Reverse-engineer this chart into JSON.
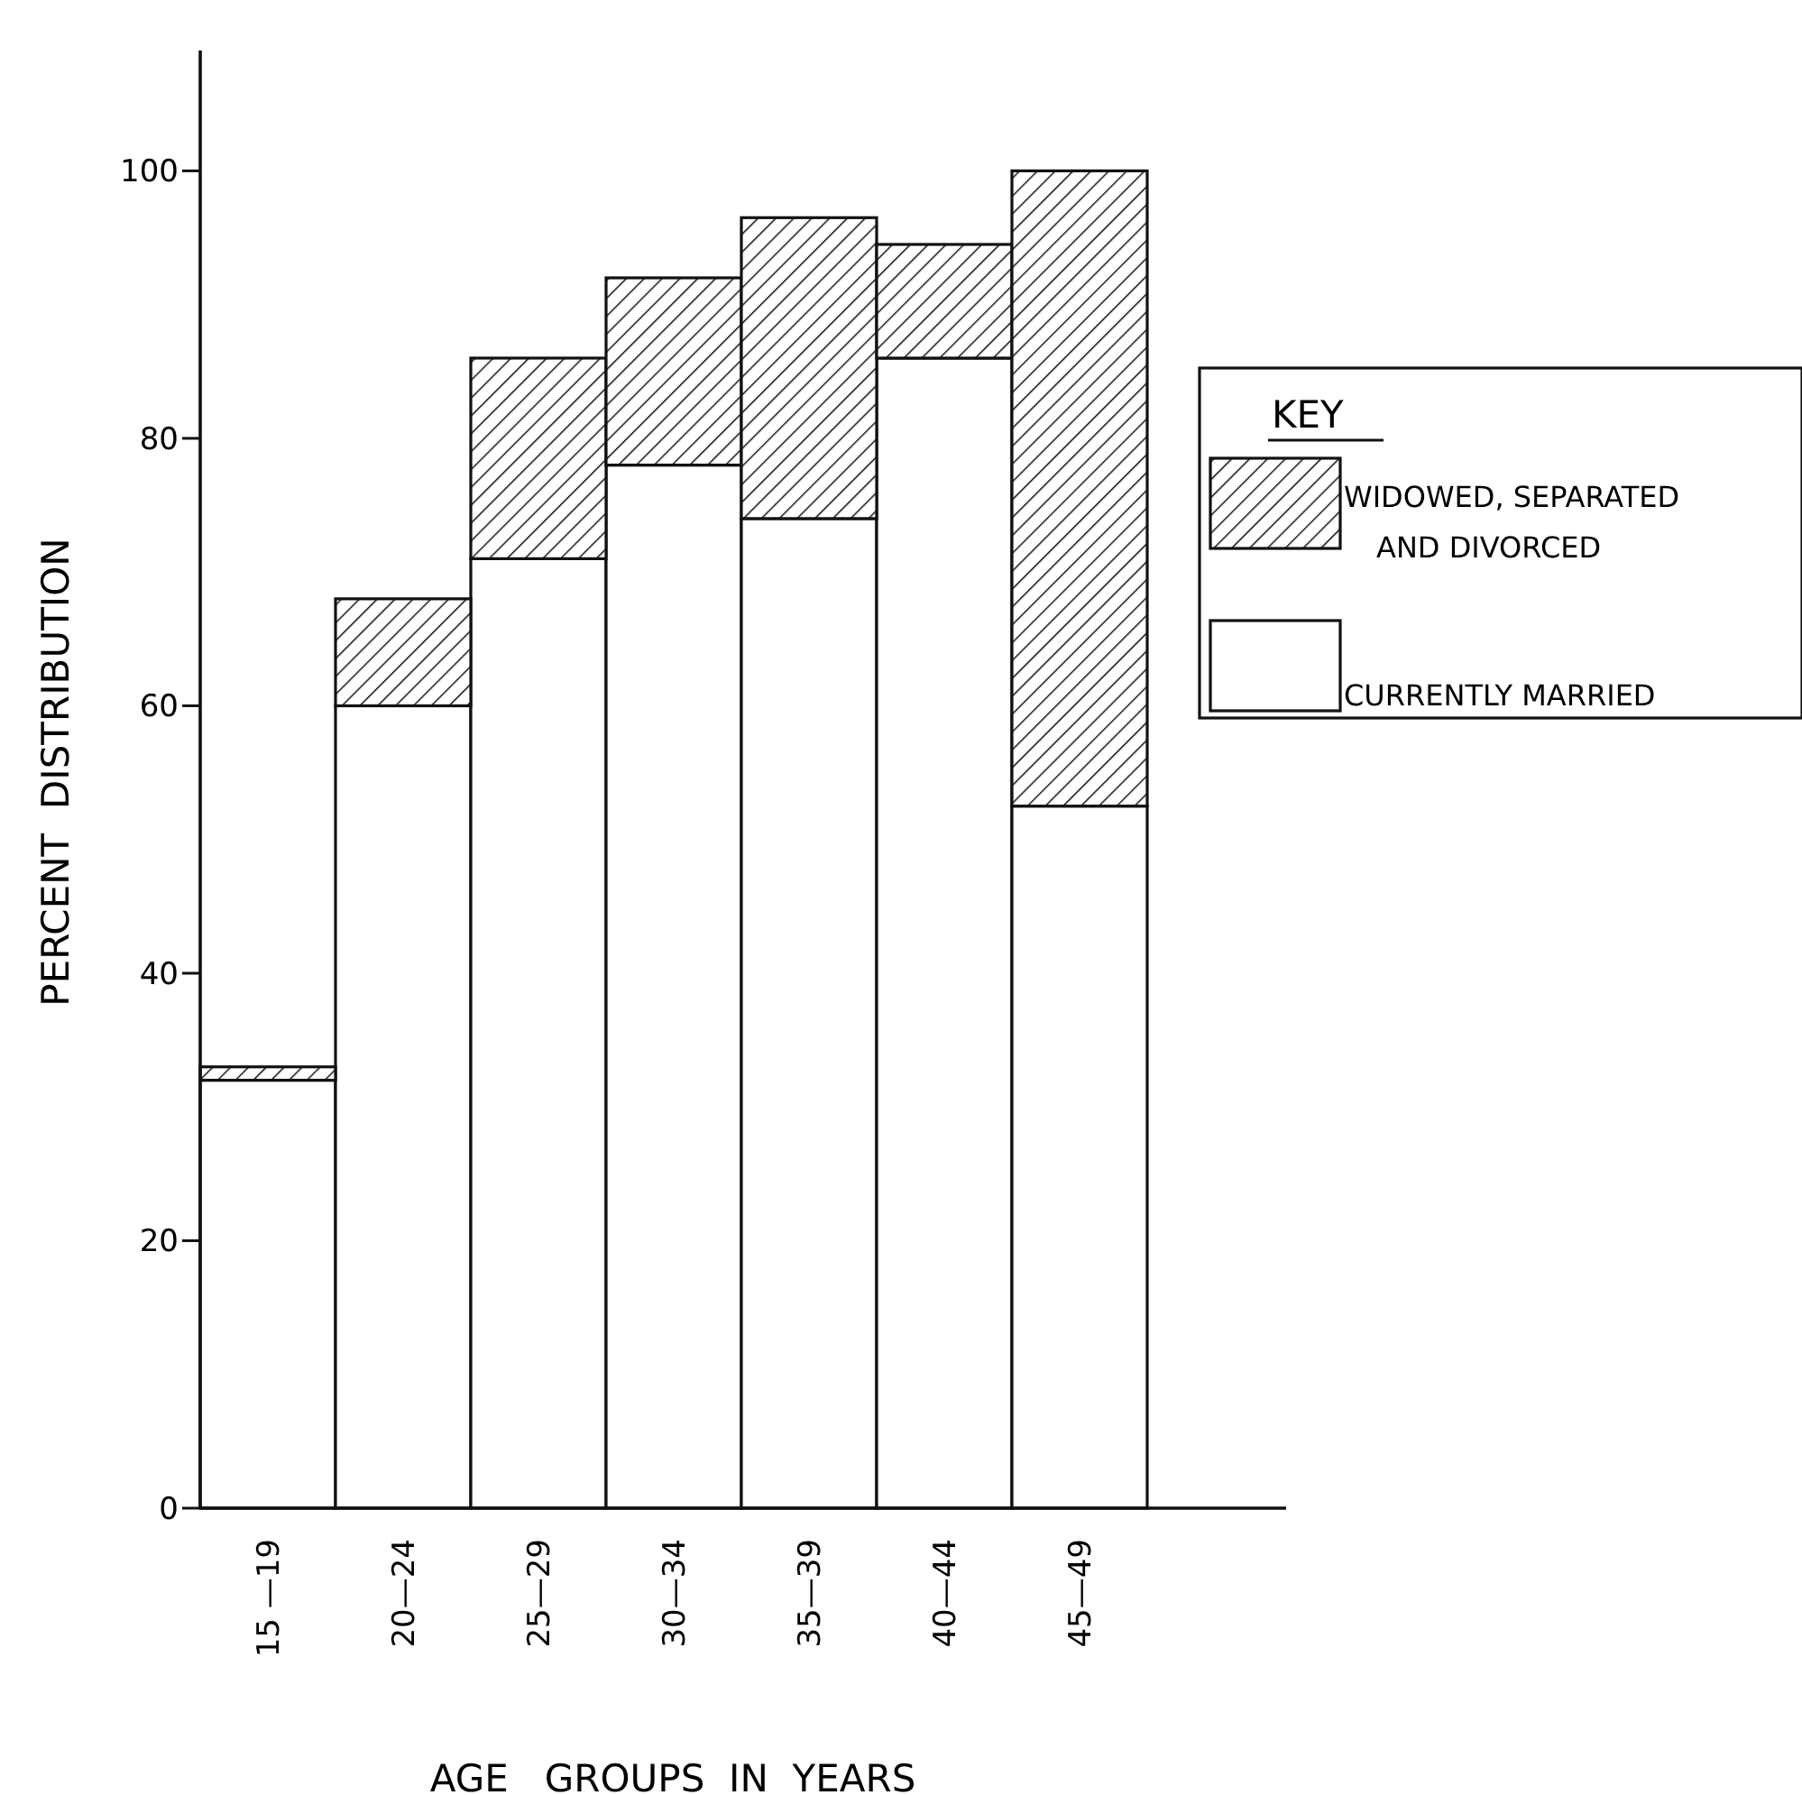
{
  "chart_data": {
    "type": "bar",
    "stacked": true,
    "xlabel": "AGE   GROUPS  IN  YEARS",
    "ylabel": "PERCENT  DISTRIBUTION",
    "legend_title": "KEY",
    "legend": "right",
    "categories": [
      "15 —19",
      "20—24",
      "25—29",
      "30—34",
      "35—39",
      "40—44",
      "45—49"
    ],
    "series": [
      {
        "name": "CURRENTLY MARRIED",
        "color": "#ffffff",
        "values": [
          32,
          60,
          71,
          78,
          74,
          86,
          52.5
        ]
      },
      {
        "name": "WIDOWED, SEPARATED AND DIVORCED",
        "color": "#111111",
        "values": [
          1,
          8,
          15,
          14,
          22.5,
          8.5,
          47.5
        ]
      }
    ],
    "ylim": [
      0,
      109
    ],
    "yticks": [
      0,
      20,
      40,
      60,
      80,
      100
    ]
  }
}
